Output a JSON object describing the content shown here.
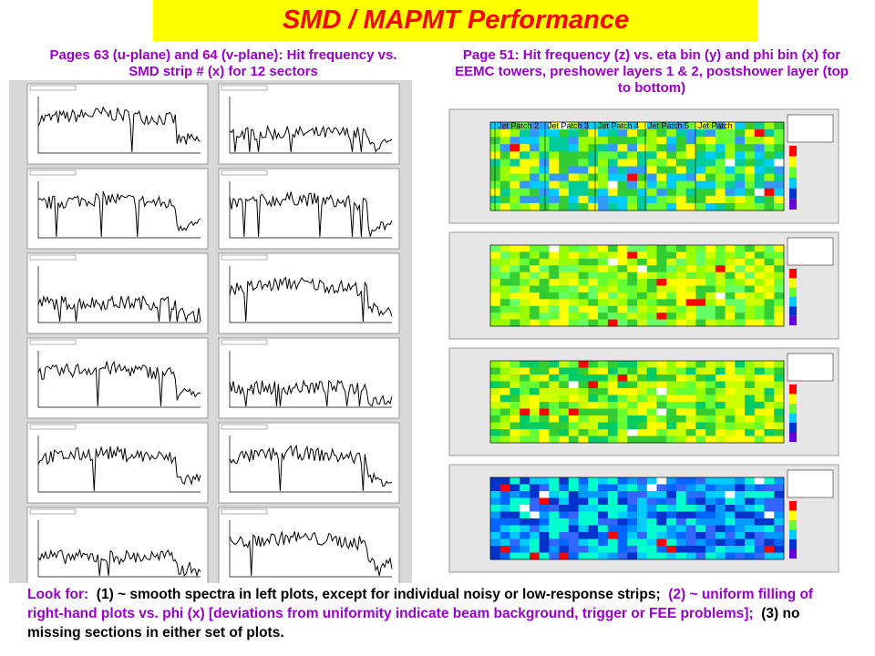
{
  "title": "SMD / MAPMT  Performance",
  "left_panel": {
    "caption": "Pages 63 (u-plane) and 64 (v-plane):  Hit frequency vs. SMD strip # (x) for 12 sectors"
  },
  "right_panel": {
    "caption": "Page 51:  Hit frequency (z) vs. eta bin (y) and phi bin (x) for EEMC towers, preshower layers 1 & 2, postshower layer (top to bottom)",
    "jet_patch_labels": [
      "Jet Patch 2",
      "Jet Patch 3",
      "Jet Patch 4",
      "Jet Patch 5",
      "Jet Patch"
    ]
  },
  "footer": {
    "segments": [
      "Look for:",
      "(1) ~ smooth spectra in left plots, except for individual noisy or low-response strips;",
      "(2) ~ uniform filling of right-hand plots vs. phi (x) [deviations from uniformity indicate beam background, trigger or FEE problems];",
      "(3) no missing sections in either set of plots."
    ]
  }
}
